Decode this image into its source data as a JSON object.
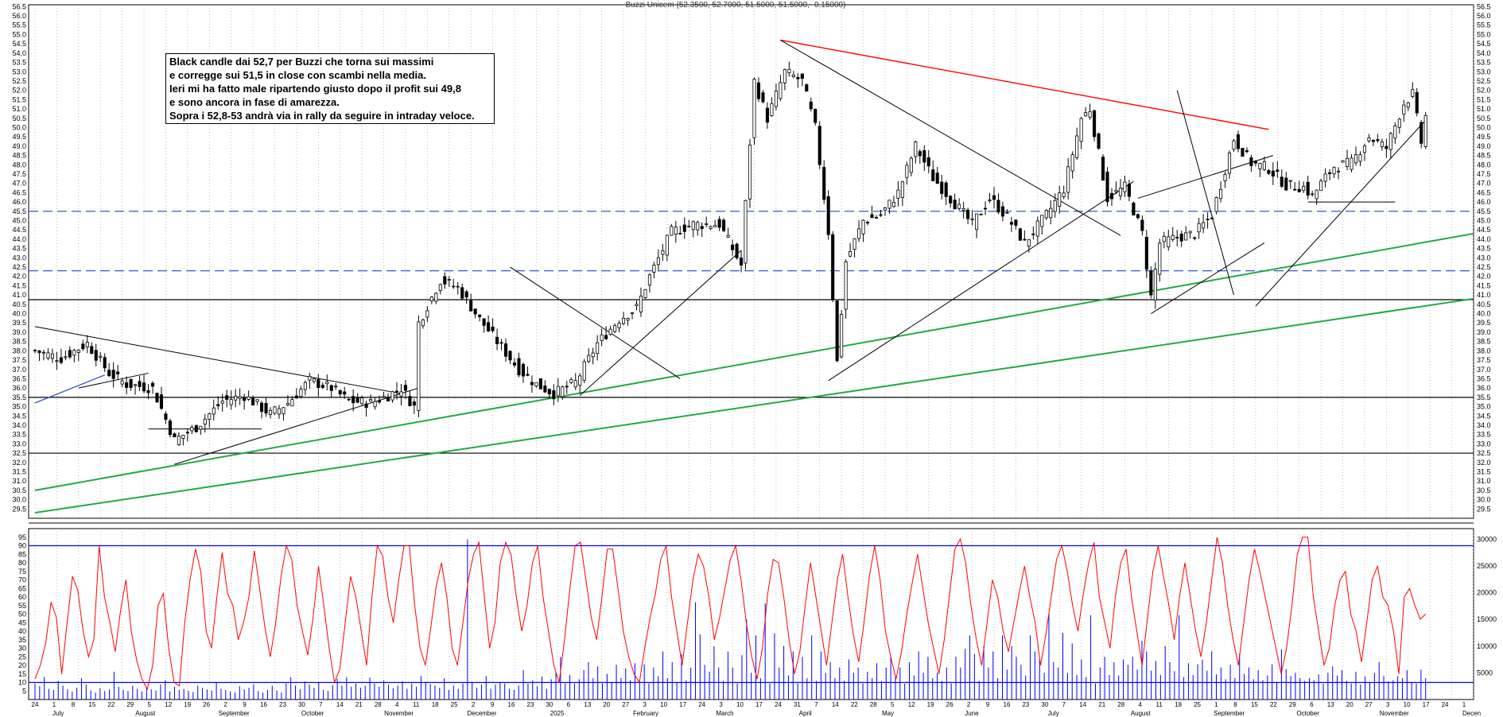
{
  "header": {
    "title": "Buzzi Unicem (52.3500, 52.7000, 51.5000, 51.5000, -0.15000)"
  },
  "annotation": {
    "lines": [
      "Black candle dai 52,7 per Buzzi che torna sui massimi",
      "e corregge sui 51,5 in close con scambi nella media.",
      "Ieri mi ha fatto male ripartendo giusto dopo il profit sui 49,8",
      "e sono ancora in fase di amarezza.",
      "Sopra i 52,8-53 andrà via in rally da seguire in intraday veloce."
    ]
  },
  "colors": {
    "candle": "#000000",
    "trend_black": "#000000",
    "trend_red": "#ff0000",
    "trend_green": "#22aa44",
    "dashed_blue": "#2244cc",
    "oscillator": "#ff0000",
    "volume": "#0000ff",
    "band": "#0000ff",
    "grid": "#9a9a9a"
  },
  "chart_data": [
    {
      "type": "candlestick",
      "title": "Buzzi Unicem (52.3500, 52.7000, 51.5000, 51.5000, -0.15000)",
      "ylim": [
        29,
        56.6
      ],
      "y_ticks": [
        "56.5",
        "56.0",
        "55.5",
        "55.0",
        "54.5",
        "54.0",
        "53.5",
        "53.0",
        "52.5",
        "52.0",
        "51.5",
        "51.0",
        "50.5",
        "50.0",
        "49.5",
        "49.0",
        "48.5",
        "48.0",
        "47.5",
        "47.0",
        "46.5",
        "46.0",
        "45.5",
        "45.0",
        "44.5",
        "44.0",
        "43.5",
        "43.0",
        "42.5",
        "42.0",
        "41.5",
        "41.0",
        "40.5",
        "40.0",
        "39.5",
        "39.0",
        "38.5",
        "38.0",
        "37.5",
        "37.0",
        "36.5",
        "36.0",
        "35.5",
        "35.0",
        "34.5",
        "34.0",
        "33.5",
        "33.0",
        "32.5",
        "32.0",
        "31.5",
        "31.0",
        "30.5",
        "30.0",
        "29.5"
      ],
      "last_candle": {
        "open": 52.35,
        "high": 52.7,
        "low": 51.5,
        "close": 51.5,
        "change": -0.15
      },
      "close_path": [
        [
          0,
          38.0
        ],
        [
          6,
          37.6
        ],
        [
          12,
          38.4
        ],
        [
          17,
          36.8
        ],
        [
          21,
          36.2
        ],
        [
          27,
          36.0
        ],
        [
          32,
          33.2
        ],
        [
          37,
          33.9
        ],
        [
          43,
          35.3
        ],
        [
          48,
          35.6
        ],
        [
          54,
          34.6
        ],
        [
          58,
          35.2
        ],
        [
          63,
          36.4
        ],
        [
          68,
          36.0
        ],
        [
          72,
          35.3
        ],
        [
          77,
          35.2
        ],
        [
          81,
          35.6
        ],
        [
          84,
          36.0
        ],
        [
          87,
          35.0
        ],
        [
          88,
          39.5
        ],
        [
          93,
          41.8
        ],
        [
          97,
          41.4
        ],
        [
          102,
          39.7
        ],
        [
          107,
          38.2
        ],
        [
          111,
          37.0
        ],
        [
          115,
          36.2
        ],
        [
          119,
          35.7
        ],
        [
          124,
          36.3
        ],
        [
          129,
          38.4
        ],
        [
          134,
          39.7
        ],
        [
          138,
          40.3
        ],
        [
          141,
          42.0
        ],
        [
          146,
          44.4
        ],
        [
          151,
          44.8
        ],
        [
          157,
          44.8
        ],
        [
          162,
          42.6
        ],
        [
          165,
          52.5
        ],
        [
          168,
          50.5
        ],
        [
          172,
          53.0
        ],
        [
          176,
          52.5
        ],
        [
          179,
          50.0
        ],
        [
          182,
          44.4
        ],
        [
          184,
          37.4
        ],
        [
          186,
          42.8
        ],
        [
          190,
          45.0
        ],
        [
          194,
          45.3
        ],
        [
          198,
          46.5
        ],
        [
          202,
          49.0
        ],
        [
          206,
          47.3
        ],
        [
          210,
          46.2
        ],
        [
          215,
          44.8
        ],
        [
          219,
          46.2
        ],
        [
          223,
          45.2
        ],
        [
          227,
          43.8
        ],
        [
          232,
          45.3
        ],
        [
          236,
          46.7
        ],
        [
          240,
          50.5
        ],
        [
          242,
          51.0
        ],
        [
          246,
          46.2
        ],
        [
          250,
          46.8
        ],
        [
          254,
          44.3
        ],
        [
          256,
          40.9
        ],
        [
          258,
          43.8
        ],
        [
          262,
          44.1
        ],
        [
          266,
          44.3
        ],
        [
          270,
          45.3
        ],
        [
          275,
          49.4
        ],
        [
          279,
          48.1
        ],
        [
          283,
          47.8
        ],
        [
          287,
          46.9
        ],
        [
          291,
          46.8
        ],
        [
          293,
          46.3
        ],
        [
          295,
          47.0
        ],
        [
          298,
          47.9
        ],
        [
          302,
          48.1
        ],
        [
          306,
          49.5
        ],
        [
          310,
          48.9
        ],
        [
          314,
          51.3
        ],
        [
          316,
          51.8
        ],
        [
          318,
          49.2
        ],
        [
          319,
          50.6
        ]
      ],
      "annotation_lines": [
        {
          "kind": "horizontal",
          "style": "solid",
          "color": "black",
          "value": 35.5
        },
        {
          "kind": "horizontal",
          "style": "solid",
          "color": "black",
          "value": 32.5
        },
        {
          "kind": "horizontal",
          "style": "solid",
          "color": "black",
          "value": 40.75
        },
        {
          "kind": "horizontal",
          "style": "dashed",
          "color": "blue",
          "value": 42.3
        },
        {
          "kind": "horizontal",
          "style": "dashed",
          "color": "blue",
          "value": 45.5
        },
        {
          "kind": "trendline",
          "color": "red",
          "from": [
            171,
            54.7
          ],
          "to": [
            283,
            49.9
          ]
        },
        {
          "kind": "trendline",
          "color": "green",
          "from": [
            0,
            30.5
          ],
          "to": [
            330,
            44.3
          ]
        },
        {
          "kind": "trendline",
          "color": "green",
          "from": [
            0,
            29.3
          ],
          "to": [
            330,
            40.8
          ]
        }
      ],
      "x_top_labels": [
        "24",
        "1",
        "8",
        "15",
        "22",
        "29",
        "5",
        "12",
        "19",
        "26",
        "2",
        "9",
        "16",
        "23",
        "30",
        "7",
        "14",
        "21",
        "28",
        "4",
        "11",
        "18",
        "25",
        "2",
        "9",
        "16",
        "23",
        "30",
        "6",
        "13",
        "20",
        "27",
        "3",
        "10",
        "17",
        "24",
        "3",
        "10",
        "17",
        "24",
        "31",
        "7",
        "14",
        "22",
        "28",
        "5",
        "12",
        "19",
        "26",
        "2",
        "9",
        "16",
        "23",
        "30",
        "7",
        "14",
        "21",
        "28",
        "4",
        "11",
        "18",
        "25",
        "1",
        "8",
        "15",
        "22",
        "29",
        "6",
        "13",
        "20",
        "27",
        "3",
        "10",
        "17",
        "24",
        "1"
      ],
      "x_month_labels": [
        "July",
        "August",
        "September",
        "October",
        "November",
        "December",
        "2025",
        "February",
        "March",
        "April",
        "May",
        "June",
        "July",
        "August",
        "September",
        "October",
        "November",
        "Decen"
      ]
    },
    {
      "type": "line",
      "name_hidden": true,
      "ylim": [
        0,
        100
      ],
      "y_ticks_left": [
        "95",
        "90",
        "85",
        "80",
        "75",
        "70",
        "65",
        "60",
        "55",
        "50",
        "45",
        "40",
        "35",
        "30",
        "25",
        "20",
        "15",
        "10",
        "5"
      ],
      "bands": [
        90,
        10
      ],
      "values": [
        12,
        20,
        33,
        57,
        48,
        15,
        45,
        72,
        64,
        40,
        25,
        35,
        90,
        60,
        45,
        28,
        52,
        70,
        40,
        23,
        12,
        6,
        20,
        55,
        62,
        30,
        10,
        8,
        45,
        70,
        88,
        75,
        40,
        30,
        60,
        86,
        62,
        55,
        35,
        45,
        60,
        87,
        65,
        42,
        25,
        45,
        72,
        90,
        82,
        55,
        40,
        26,
        48,
        78,
        55,
        30,
        10,
        18,
        45,
        72,
        60,
        40,
        20,
        60,
        90,
        84,
        60,
        45,
        70,
        90,
        90,
        55,
        30,
        20,
        42,
        66,
        80,
        60,
        30,
        20,
        45,
        70,
        85,
        92,
        60,
        30,
        45,
        80,
        92,
        85,
        60,
        40,
        55,
        80,
        90,
        60,
        40,
        20,
        10,
        35,
        65,
        90,
        92,
        70,
        48,
        35,
        60,
        88,
        88,
        65,
        40,
        25,
        15,
        10,
        30,
        48,
        62,
        82,
        90,
        60,
        40,
        20,
        45,
        70,
        85,
        78,
        60,
        35,
        48,
        65,
        82,
        90,
        70,
        45,
        25,
        12,
        30,
        62,
        82,
        80,
        60,
        35,
        15,
        28,
        55,
        80,
        60,
        40,
        20,
        45,
        70,
        85,
        60,
        38,
        22,
        45,
        72,
        90,
        70,
        40,
        25,
        12,
        28,
        50,
        68,
        85,
        65,
        45,
        30,
        15,
        35,
        62,
        88,
        94,
        80,
        55,
        35,
        20,
        45,
        70,
        60,
        40,
        28,
        45,
        62,
        78,
        60,
        45,
        20,
        38,
        60,
        82,
        90,
        75,
        55,
        40,
        62,
        80,
        92,
        60,
        45,
        30,
        60,
        80,
        88,
        60,
        40,
        20,
        48,
        75,
        90,
        72,
        55,
        35,
        60,
        80,
        60,
        40,
        25,
        45,
        70,
        95,
        80,
        55,
        35,
        20,
        45,
        70,
        88,
        75,
        60,
        45,
        30,
        15,
        30,
        55,
        85,
        95,
        95,
        60,
        40,
        20,
        30,
        55,
        70,
        75,
        50,
        40,
        22,
        45,
        70,
        78,
        60,
        55,
        40,
        15,
        60,
        65,
        55,
        47,
        50
      ]
    },
    {
      "type": "bar",
      "name_hidden": true,
      "ylim": [
        0,
        32000
      ],
      "y_ticks_right": [
        "30000",
        "25000",
        "20000",
        "15000",
        "10000",
        "5000"
      ],
      "values": [
        3000,
        2500,
        4200,
        2000,
        1800,
        3500,
        2600,
        1900,
        1500,
        2200,
        4000,
        2800,
        1700,
        1300,
        2100,
        1600,
        1900,
        5200,
        2400,
        1800,
        1600,
        2600,
        2000,
        1500,
        2300,
        1900,
        1700,
        2800,
        3600,
        1500,
        2400,
        1800,
        2000,
        1600,
        1400,
        2600,
        2200,
        1900,
        1700,
        3200,
        2000,
        1800,
        1500,
        1300,
        2500,
        1900,
        2200,
        2800,
        1600,
        1300,
        1800,
        2600,
        1700,
        1300,
        3000,
        4200,
        2600,
        1900,
        3400,
        2800,
        2200,
        3100,
        1800,
        1600,
        2700,
        3900,
        2600,
        4200,
        2400,
        3000,
        2200,
        2600,
        4100,
        3000,
        2400,
        3600,
        2800,
        2100,
        2600,
        3400,
        2000,
        3000,
        2400,
        4400,
        3300,
        2900,
        2600,
        2200,
        4000,
        1800,
        2600,
        2000,
        3000,
        30000,
        3200,
        2200,
        2800,
        4400,
        2000,
        2800,
        3300,
        3000,
        2000,
        1800,
        2600,
        5500,
        3000,
        3600,
        2500,
        4300,
        2000,
        3800,
        5000,
        8000,
        3000,
        4600,
        3000,
        3800,
        5500,
        7000,
        4000,
        6200,
        3000,
        4800,
        3200,
        6500,
        4000,
        5800,
        3600,
        6800,
        3500,
        6600,
        3000,
        6000,
        4400,
        9000,
        4000,
        7000,
        3200,
        8500,
        3600,
        6000,
        18200,
        12200,
        6500,
        5200,
        10000,
        6000,
        3500,
        9000,
        6000,
        3000,
        8300,
        15000,
        5000,
        12000,
        4000,
        18000,
        3000,
        12400,
        6000,
        10000,
        4500,
        9000,
        3000,
        8000,
        4000,
        12000,
        3500,
        9000,
        5000,
        7000,
        4000,
        6000,
        3500,
        7500,
        5000,
        6000,
        3000,
        5200,
        4000,
        6800,
        3500,
        6000,
        8000,
        4500,
        6000,
        3000,
        7000,
        4500,
        9000,
        5000,
        8000,
        4000,
        5000,
        3500,
        6000,
        3000,
        8000,
        6000,
        9500,
        12000,
        8500,
        3500,
        10000,
        6000,
        9000,
        4000,
        12000,
        5600,
        10000,
        8000,
        6500,
        4500,
        12000,
        9000,
        7500,
        5000,
        16000,
        7000,
        6000,
        12500,
        5000,
        10500,
        4600,
        7500,
        4200,
        15800,
        3000,
        6000,
        8000,
        4600,
        7000,
        4500,
        7500,
        6500,
        8000,
        5600,
        11000,
        9000,
        5400,
        7200,
        4600,
        10000,
        7000,
        5300,
        15800,
        4200,
        6800,
        4600,
        6600,
        7500,
        5400,
        9000,
        4700,
        6000,
        3800,
        6500,
        4000,
        8600,
        4800,
        6000,
        3800,
        5500,
        3600,
        4500,
        6600,
        3200,
        9400,
        5700,
        4400,
        5000,
        4000,
        3500,
        4000,
        3600,
        4700,
        3000,
        5000,
        6200,
        4500,
        5500,
        3500,
        3000,
        5200,
        2800,
        4300,
        3200,
        5000,
        7000,
        4400,
        3400,
        3600,
        4400,
        4000,
        5500,
        3200,
        3000,
        5600,
        4000
      ]
    }
  ]
}
